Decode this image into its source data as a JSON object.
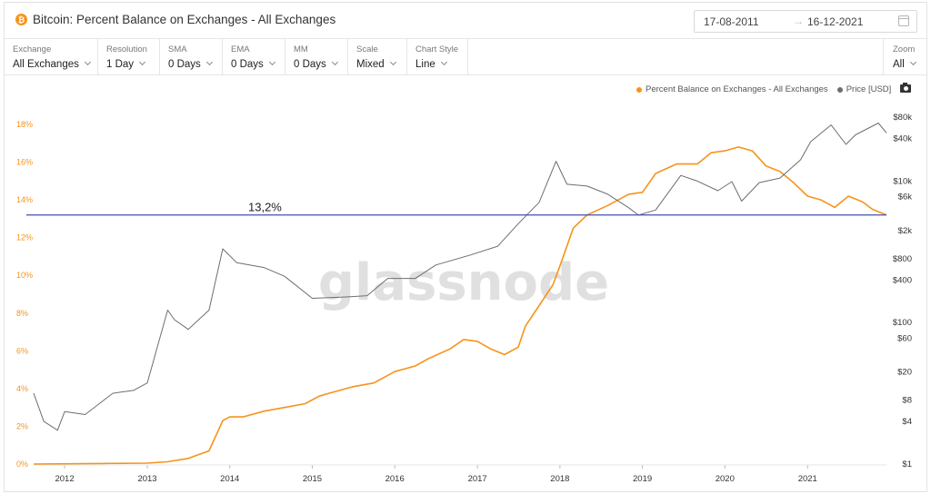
{
  "header": {
    "title": "Bitcoin: Percent Balance on Exchanges - All Exchanges",
    "date_from": "17-08-2011",
    "date_arrow": "→",
    "date_to": "16-12-2021"
  },
  "controls": [
    {
      "label": "Exchange",
      "value": "All Exchanges"
    },
    {
      "label": "Resolution",
      "value": "1 Day"
    },
    {
      "label": "SMA",
      "value": "0 Days"
    },
    {
      "label": "EMA",
      "value": "0 Days"
    },
    {
      "label": "MM",
      "value": "0 Days"
    },
    {
      "label": "Scale",
      "value": "Mixed"
    },
    {
      "label": "Chart Style",
      "value": "Line"
    }
  ],
  "zoom": {
    "label": "Zoom",
    "value": "All"
  },
  "legend": {
    "balance_label": "Percent Balance on Exchanges - All Exchanges",
    "price_label": "Price [USD]"
  },
  "watermark": "glassnode",
  "annotation": {
    "text": "13,2%"
  },
  "colors": {
    "balance": "#f7931a",
    "price": "#6e6e6e",
    "reference_line": "#3f51b5"
  },
  "chart_data": {
    "type": "line",
    "title": "Bitcoin: Percent Balance on Exchanges - All Exchanges",
    "x_ticks": [
      "2012",
      "2013",
      "2014",
      "2015",
      "2016",
      "2017",
      "2018",
      "2019",
      "2020",
      "2021"
    ],
    "x_range": [
      "2011-08-17",
      "2021-12-16"
    ],
    "y_left_ticks": [
      "0%",
      "2%",
      "4%",
      "6%",
      "8%",
      "10%",
      "12%",
      "14%",
      "16%",
      "18%"
    ],
    "y_left_range": [
      0,
      18
    ],
    "y_right_ticks": [
      {
        "label": "$80k",
        "value": 80000
      },
      {
        "label": "$40k",
        "value": 40000
      },
      {
        "label": "$10k",
        "value": 10000
      },
      {
        "label": "$6k",
        "value": 6000
      },
      {
        "label": "$2k",
        "value": 2000
      },
      {
        "label": "$800",
        "value": 800
      },
      {
        "label": "$400",
        "value": 400
      },
      {
        "label": "$100",
        "value": 100
      },
      {
        "label": "$60",
        "value": 60
      },
      {
        "label": "$20",
        "value": 20
      },
      {
        "label": "$8",
        "value": 8
      },
      {
        "label": "$4",
        "value": 4
      },
      {
        "label": "$1",
        "value": 1
      }
    ],
    "y_right_scale": "log",
    "reference_line": 13.2,
    "grid": false,
    "legend_position": "top-right",
    "series": [
      {
        "name": "Percent Balance on Exchanges - All Exchanges",
        "axis": "left",
        "color": "#f7931a",
        "points": [
          [
            "2011-08-17",
            0.0
          ],
          [
            "2012-06-01",
            0.03
          ],
          [
            "2013-01-01",
            0.05
          ],
          [
            "2013-04-01",
            0.12
          ],
          [
            "2013-07-01",
            0.3
          ],
          [
            "2013-10-01",
            0.7
          ],
          [
            "2013-12-01",
            2.3
          ],
          [
            "2014-01-01",
            2.5
          ],
          [
            "2014-03-01",
            2.5
          ],
          [
            "2014-06-01",
            2.8
          ],
          [
            "2014-09-01",
            3.0
          ],
          [
            "2014-12-01",
            3.2
          ],
          [
            "2015-02-01",
            3.6
          ],
          [
            "2015-04-01",
            3.8
          ],
          [
            "2015-07-01",
            4.1
          ],
          [
            "2015-10-01",
            4.3
          ],
          [
            "2016-01-01",
            4.9
          ],
          [
            "2016-04-01",
            5.2
          ],
          [
            "2016-06-01",
            5.6
          ],
          [
            "2016-09-01",
            6.1
          ],
          [
            "2016-11-01",
            6.6
          ],
          [
            "2017-01-01",
            6.5
          ],
          [
            "2017-03-01",
            6.1
          ],
          [
            "2017-05-01",
            5.8
          ],
          [
            "2017-07-01",
            6.2
          ],
          [
            "2017-08-01",
            7.3
          ],
          [
            "2017-10-01",
            8.4
          ],
          [
            "2017-12-01",
            9.5
          ],
          [
            "2018-01-01",
            10.5
          ],
          [
            "2018-03-01",
            12.5
          ],
          [
            "2018-05-01",
            13.2
          ],
          [
            "2018-08-01",
            13.7
          ],
          [
            "2018-11-01",
            14.3
          ],
          [
            "2019-01-01",
            14.4
          ],
          [
            "2019-03-01",
            15.4
          ],
          [
            "2019-06-01",
            15.9
          ],
          [
            "2019-09-01",
            15.9
          ],
          [
            "2019-11-01",
            16.5
          ],
          [
            "2020-01-01",
            16.6
          ],
          [
            "2020-03-01",
            16.8
          ],
          [
            "2020-05-01",
            16.6
          ],
          [
            "2020-07-01",
            15.8
          ],
          [
            "2020-09-01",
            15.5
          ],
          [
            "2020-11-01",
            14.9
          ],
          [
            "2021-01-01",
            14.2
          ],
          [
            "2021-03-01",
            14.0
          ],
          [
            "2021-05-01",
            13.6
          ],
          [
            "2021-07-01",
            14.2
          ],
          [
            "2021-09-01",
            13.9
          ],
          [
            "2021-10-15",
            13.5
          ],
          [
            "2021-12-16",
            13.2
          ]
        ]
      },
      {
        "name": "Price [USD]",
        "axis": "right",
        "color": "#6e6e6e",
        "points": [
          [
            "2011-08-17",
            10
          ],
          [
            "2011-10-01",
            4
          ],
          [
            "2011-12-01",
            3
          ],
          [
            "2012-01-01",
            5.5
          ],
          [
            "2012-04-01",
            5
          ],
          [
            "2012-08-01",
            10
          ],
          [
            "2012-11-01",
            11
          ],
          [
            "2013-01-01",
            14
          ],
          [
            "2013-04-01",
            150
          ],
          [
            "2013-05-01",
            110
          ],
          [
            "2013-07-01",
            80
          ],
          [
            "2013-10-01",
            150
          ],
          [
            "2013-12-01",
            1100
          ],
          [
            "2014-02-01",
            700
          ],
          [
            "2014-06-01",
            600
          ],
          [
            "2014-09-01",
            450
          ],
          [
            "2015-01-01",
            220
          ],
          [
            "2015-06-01",
            230
          ],
          [
            "2015-09-01",
            240
          ],
          [
            "2015-12-01",
            420
          ],
          [
            "2016-04-01",
            420
          ],
          [
            "2016-07-01",
            650
          ],
          [
            "2016-12-01",
            900
          ],
          [
            "2017-04-01",
            1200
          ],
          [
            "2017-07-01",
            2500
          ],
          [
            "2017-10-01",
            5000
          ],
          [
            "2017-12-15",
            19000
          ],
          [
            "2018-02-01",
            9000
          ],
          [
            "2018-05-01",
            8500
          ],
          [
            "2018-08-01",
            6500
          ],
          [
            "2018-11-01",
            4200
          ],
          [
            "2018-12-15",
            3300
          ],
          [
            "2019-03-01",
            3900
          ],
          [
            "2019-06-20",
            12000
          ],
          [
            "2019-09-01",
            10000
          ],
          [
            "2019-12-01",
            7300
          ],
          [
            "2020-02-01",
            9800
          ],
          [
            "2020-03-15",
            5200
          ],
          [
            "2020-06-01",
            9500
          ],
          [
            "2020-09-01",
            11000
          ],
          [
            "2020-12-01",
            20000
          ],
          [
            "2021-01-15",
            36000
          ],
          [
            "2021-04-15",
            62000
          ],
          [
            "2021-06-20",
            33000
          ],
          [
            "2021-08-01",
            45000
          ],
          [
            "2021-11-10",
            66000
          ],
          [
            "2021-12-16",
            48000
          ]
        ]
      }
    ]
  }
}
